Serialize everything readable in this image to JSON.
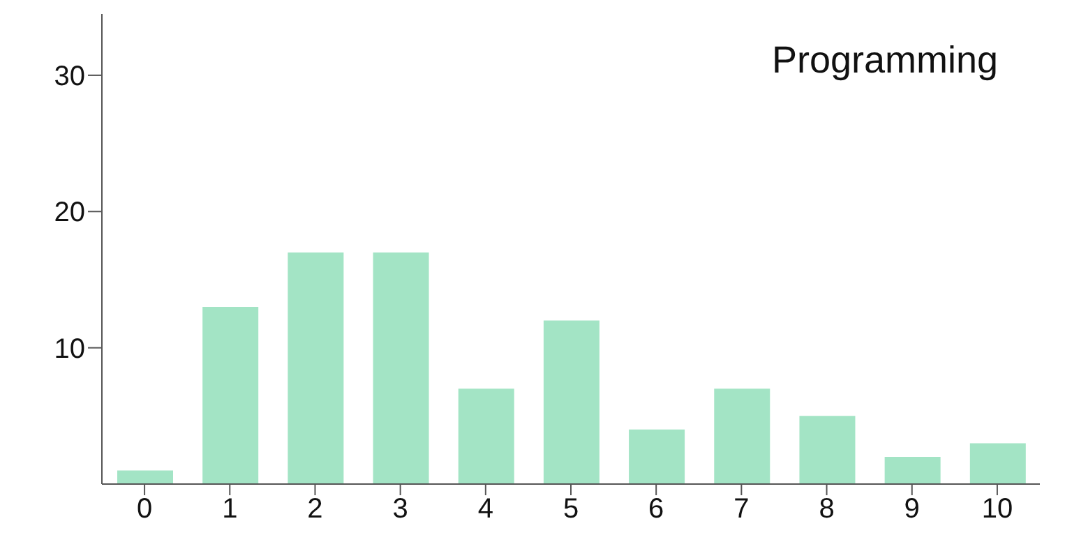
{
  "chart_data": {
    "type": "bar",
    "title": "Programming",
    "categories": [
      "0",
      "1",
      "2",
      "3",
      "4",
      "5",
      "6",
      "7",
      "8",
      "9",
      "10"
    ],
    "values": [
      1,
      13,
      17,
      17,
      7,
      12,
      4,
      7,
      5,
      2,
      3
    ],
    "color": "#a3e4c5",
    "ylim": [
      0,
      34.5
    ],
    "yticks": [
      10,
      20,
      30
    ],
    "grid": false,
    "legend": false
  }
}
